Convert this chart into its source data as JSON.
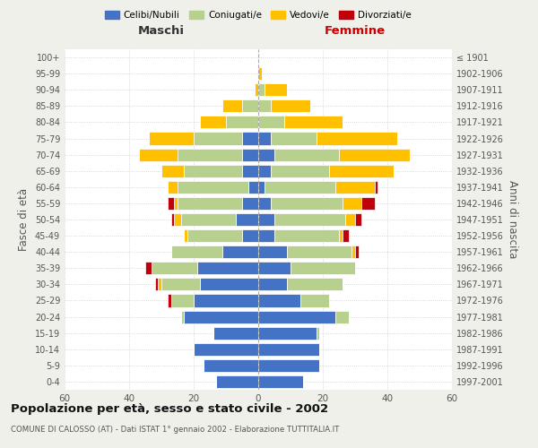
{
  "age_groups": [
    "0-4",
    "5-9",
    "10-14",
    "15-19",
    "20-24",
    "25-29",
    "30-34",
    "35-39",
    "40-44",
    "45-49",
    "50-54",
    "55-59",
    "60-64",
    "65-69",
    "70-74",
    "75-79",
    "80-84",
    "85-89",
    "90-94",
    "95-99",
    "100+"
  ],
  "birth_years": [
    "1997-2001",
    "1992-1996",
    "1987-1991",
    "1982-1986",
    "1977-1981",
    "1972-1976",
    "1967-1971",
    "1962-1966",
    "1957-1961",
    "1952-1956",
    "1947-1951",
    "1942-1946",
    "1937-1941",
    "1932-1936",
    "1927-1931",
    "1922-1926",
    "1917-1921",
    "1912-1916",
    "1907-1911",
    "1902-1906",
    "≤ 1901"
  ],
  "males": {
    "celibi": [
      13,
      17,
      20,
      14,
      23,
      20,
      18,
      19,
      11,
      5,
      7,
      5,
      3,
      5,
      5,
      5,
      0,
      0,
      0,
      0,
      0
    ],
    "coniugati": [
      0,
      0,
      0,
      0,
      1,
      7,
      12,
      14,
      16,
      17,
      17,
      20,
      22,
      18,
      20,
      15,
      10,
      5,
      0,
      0,
      0
    ],
    "vedovi": [
      0,
      0,
      0,
      0,
      0,
      0,
      1,
      0,
      0,
      1,
      2,
      1,
      3,
      7,
      12,
      14,
      8,
      6,
      1,
      0,
      0
    ],
    "divorziati": [
      0,
      0,
      0,
      0,
      0,
      1,
      1,
      2,
      0,
      0,
      1,
      2,
      0,
      0,
      0,
      0,
      0,
      0,
      0,
      0,
      0
    ]
  },
  "females": {
    "nubili": [
      14,
      19,
      19,
      18,
      24,
      13,
      9,
      10,
      9,
      5,
      5,
      4,
      2,
      4,
      5,
      4,
      0,
      0,
      0,
      0,
      0
    ],
    "coniugate": [
      0,
      0,
      0,
      1,
      4,
      9,
      17,
      20,
      20,
      20,
      22,
      22,
      22,
      18,
      20,
      14,
      8,
      4,
      2,
      0,
      0
    ],
    "vedove": [
      0,
      0,
      0,
      0,
      0,
      0,
      0,
      0,
      1,
      1,
      3,
      6,
      12,
      20,
      22,
      25,
      18,
      12,
      7,
      1,
      0
    ],
    "divorziate": [
      0,
      0,
      0,
      0,
      0,
      0,
      0,
      0,
      1,
      2,
      2,
      4,
      1,
      0,
      0,
      0,
      0,
      0,
      0,
      0,
      0
    ]
  },
  "colors": {
    "celibi": "#4472c4",
    "coniugati": "#b8d08d",
    "vedovi": "#ffc000",
    "divorziati": "#c0000b"
  },
  "xlim": 60,
  "title": "Popolazione per età, sesso e stato civile - 2002",
  "subtitle": "COMUNE DI CALOSSO (AT) - Dati ISTAT 1° gennaio 2002 - Elaborazione TUTTITALIA.IT",
  "ylabel": "Fasce di età",
  "right_ylabel": "Anni di nascita",
  "xlabel_left": "Maschi",
  "xlabel_right": "Femmine",
  "legend_labels": [
    "Celibi/Nubili",
    "Coniugati/e",
    "Vedovi/e",
    "Divorziati/e"
  ],
  "bg_color": "#f0f0eb",
  "bar_bg_color": "#ffffff"
}
